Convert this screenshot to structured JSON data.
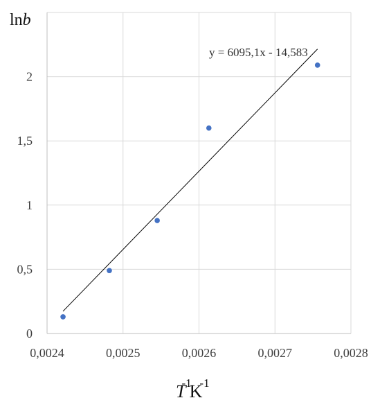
{
  "chart_data": {
    "type": "scatter",
    "ylabel_prefix": "ln",
    "ylabel_var": "b",
    "xlabel_var": "T",
    "xlabel_exp": "-1",
    "xlabel_unit": "K",
    "xlabel_unit_exp": "-1",
    "xlim": [
      0.0024,
      0.0028
    ],
    "ylim": [
      0,
      2.5
    ],
    "x_ticks": [
      0.0024,
      0.0025,
      0.0026,
      0.0027,
      0.0028
    ],
    "x_tick_labels": [
      "0,0024",
      "0,0025",
      "0,0026",
      "0,0027",
      "0,0028"
    ],
    "y_ticks": [
      0,
      0.5,
      1,
      1.5,
      2
    ],
    "y_tick_labels": [
      "0",
      "0,5",
      "1",
      "1,5",
      "2"
    ],
    "grid": true,
    "series": [
      {
        "points": [
          {
            "x": 0.002421,
            "y": 0.13
          },
          {
            "x": 0.002482,
            "y": 0.49
          },
          {
            "x": 0.002545,
            "y": 0.88
          },
          {
            "x": 0.002613,
            "y": 1.6
          },
          {
            "x": 0.002756,
            "y": 2.09
          }
        ],
        "color": "#4472C4"
      }
    ],
    "trendline": {
      "slope": 6095.1,
      "intercept": -14.583,
      "x_range": [
        0.002421,
        0.002756
      ],
      "equation": "y = 6095,1x - 14,583",
      "color": "#000000"
    }
  }
}
